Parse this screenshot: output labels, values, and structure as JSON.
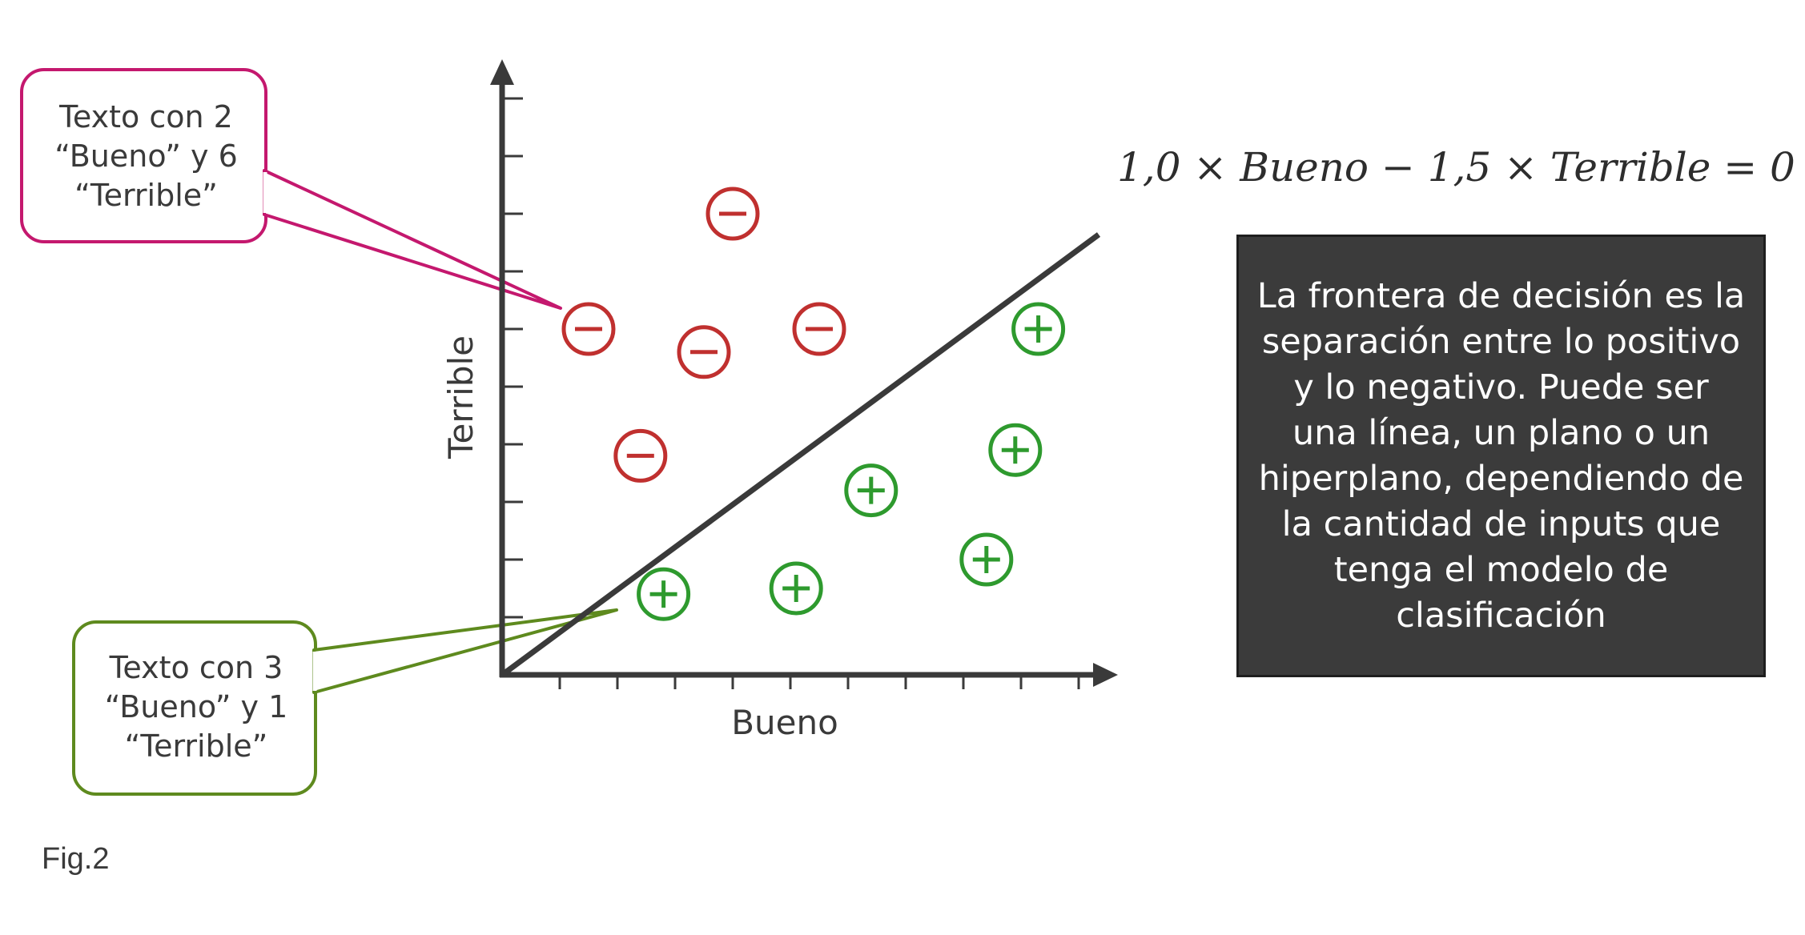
{
  "callouts": {
    "negative_example": "Texto con 2\n“Bueno” y 6\n“Terrible”",
    "positive_example": "Texto con 3\n“Bueno” y 1\n“Terrible”"
  },
  "axes": {
    "x_label": "Bueno",
    "y_label": "Terrible"
  },
  "equation": "1,0 × Bueno − 1,5 × Terrible = 0",
  "info_box": "La frontera de decisión es la separación entre lo positivo y lo negativo. Puede ser una línea, un plano o un hiperplano, dependiendo de la cantidad de inputs que tenga el modelo de clasificación",
  "figure_label": "Fig.2",
  "colors": {
    "negative": "#c0302f",
    "positive": "#2e9a2e",
    "negative_callout": "#c4186e",
    "positive_callout": "#5e8a1e",
    "axis": "#3a3a3a",
    "info_box_bg": "#3b3b3b"
  },
  "points": {
    "negative": [
      {
        "bueno": 4,
        "terrible": 8
      },
      {
        "bueno": 1.5,
        "terrible": 6
      },
      {
        "bueno": 3.5,
        "terrible": 5.6
      },
      {
        "bueno": 5.5,
        "terrible": 6
      },
      {
        "bueno": 2.4,
        "terrible": 3.8
      }
    ],
    "positive": [
      {
        "bueno": 9.3,
        "terrible": 6
      },
      {
        "bueno": 8.9,
        "terrible": 3.9
      },
      {
        "bueno": 6.4,
        "terrible": 3.2
      },
      {
        "bueno": 8.4,
        "terrible": 2
      },
      {
        "bueno": 2.8,
        "terrible": 1.4
      },
      {
        "bueno": 5.1,
        "terrible": 1.5
      }
    ]
  }
}
